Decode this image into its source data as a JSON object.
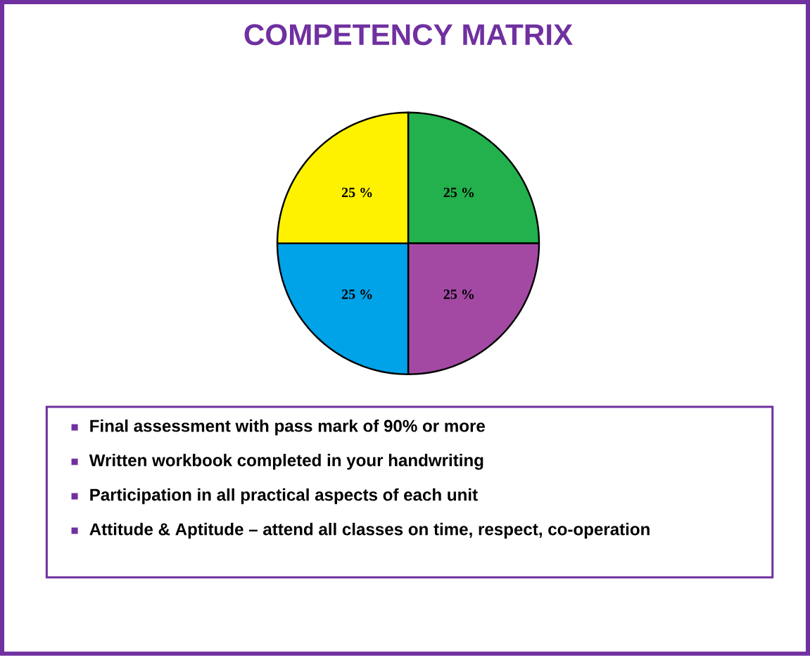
{
  "chart_data": {
    "type": "pie",
    "title": "COMPETENCY MATRIX",
    "categories": [
      null,
      null,
      null,
      null
    ],
    "values": [
      25,
      25,
      25,
      25
    ],
    "colors": [
      "#22b14c",
      "#a349a4",
      "#00a2e8",
      "#fff200"
    ],
    "value_labels": [
      "25 %",
      "25 %",
      "25 %",
      "25 %"
    ],
    "annotations": [
      "Final assessment with pass mark of 90% or more",
      "Written workbook completed in your handwriting",
      "Participation in all practical aspects of each unit",
      "Attitude & Aptitude – attend all classes on time, respect, co-operation"
    ]
  }
}
